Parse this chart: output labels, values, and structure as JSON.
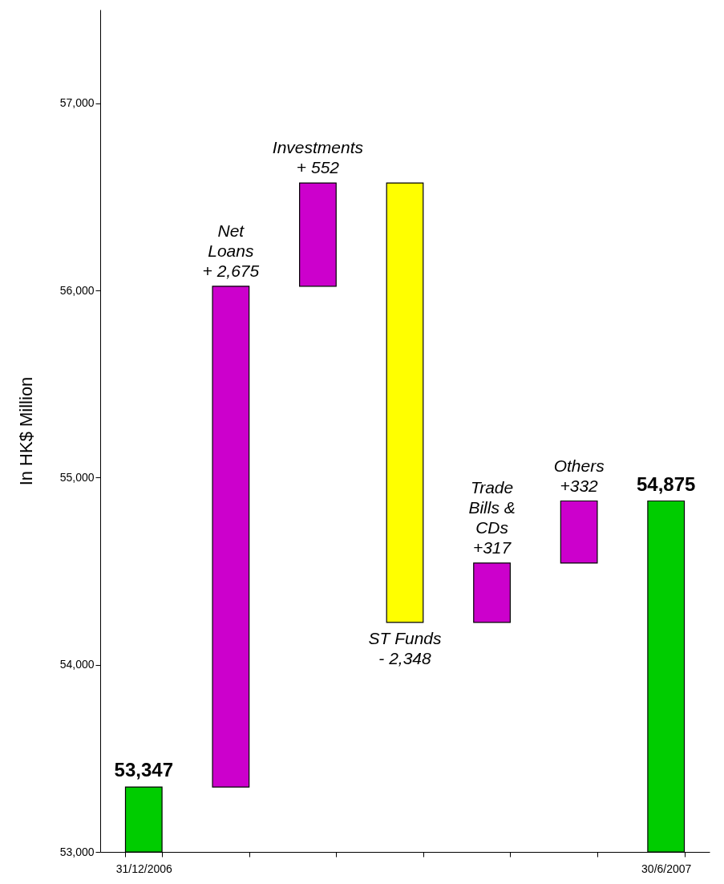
{
  "chart_data": {
    "type": "bar",
    "ylabel": "In HK$ Million",
    "categories": [
      "31/12/2006",
      null,
      null,
      null,
      null,
      null,
      "30/6/2007"
    ],
    "base": [
      53000,
      53347,
      56022,
      56574,
      54226,
      54543,
      53000
    ],
    "values": [
      347,
      2675,
      552,
      -2348,
      317,
      332,
      1875
    ],
    "colors": [
      "#00cc00",
      "#cc00cc",
      "#cc00cc",
      "#ffff00",
      "#cc00cc",
      "#cc00cc",
      "#00cc00"
    ],
    "value_labels": [
      "53,347",
      "Net\nLoans\n+ 2,675",
      "Investments\n+ 552",
      "ST Funds\n- 2,348",
      "Trade\nBills &\nCDs\n+317",
      "Others\n+332",
      "54,875"
    ],
    "ylim": [
      53000,
      57500
    ],
    "yticks": [
      {
        "value": 53000,
        "label": "53,000"
      },
      {
        "value": 54000,
        "label": "54,000"
      },
      {
        "value": 55000,
        "label": "55,000"
      },
      {
        "value": 56000,
        "label": "56,000"
      },
      {
        "value": 57000,
        "label": "57,000"
      }
    ],
    "grid": false
  }
}
